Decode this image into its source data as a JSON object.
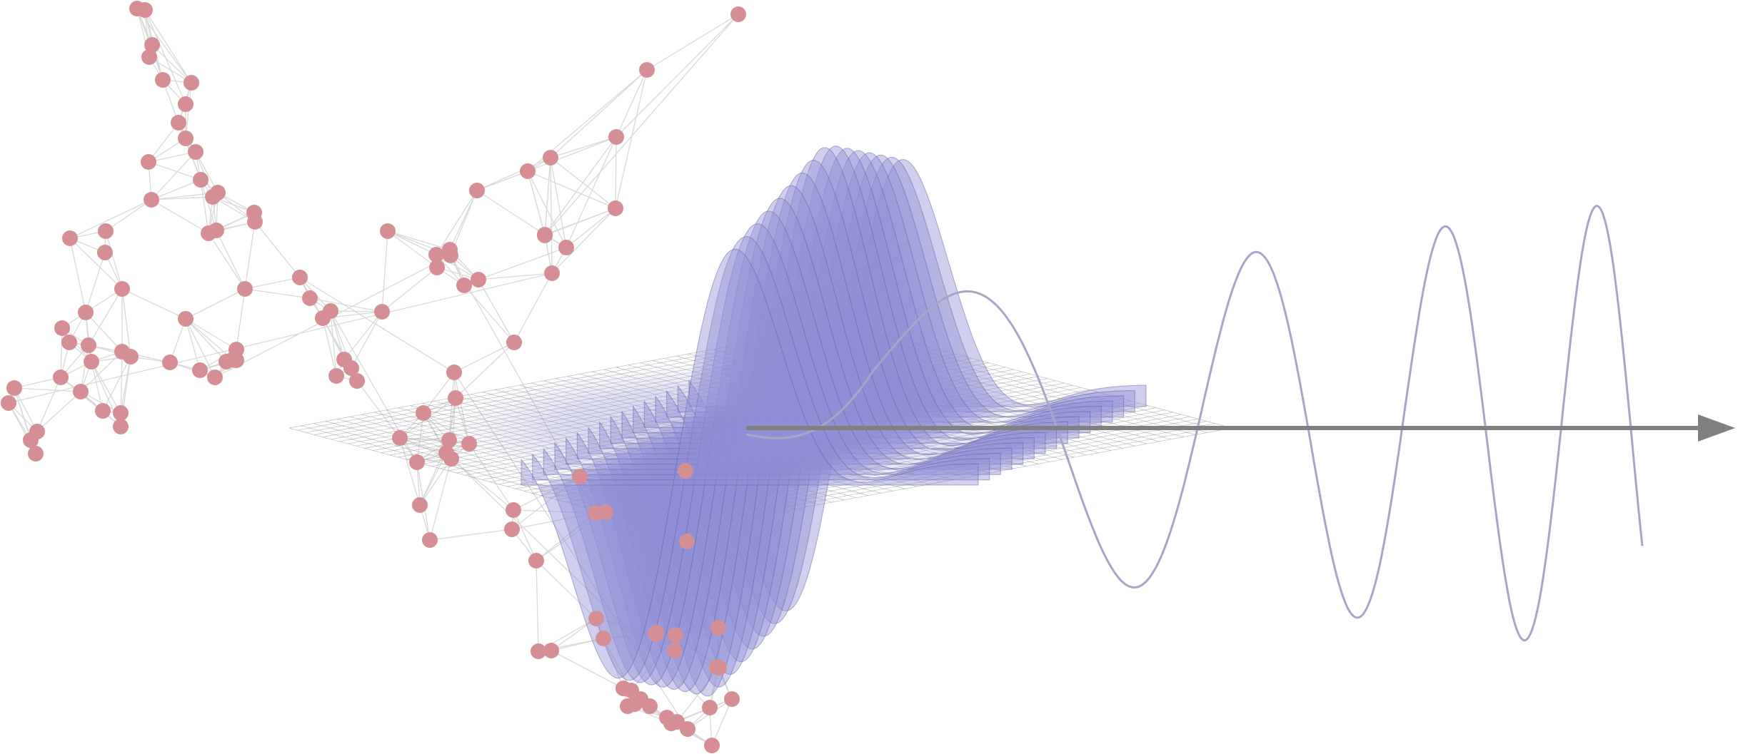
{
  "figure": {
    "colors": {
      "node": "#d48e94",
      "edge": "#d9d9d9",
      "surface": "#8f8fd6",
      "surface_edge": "#6563a8",
      "grid": "#8c8c8c",
      "signal": "#a7a6c9",
      "axis": "#808080"
    },
    "graph": {
      "node_count": 124,
      "clusters": 3
    },
    "signal": {
      "cycles_visible": 4,
      "trend": "increasing-frequency"
    },
    "axis": {
      "direction": "right",
      "icon": "arrow-right-icon"
    }
  }
}
